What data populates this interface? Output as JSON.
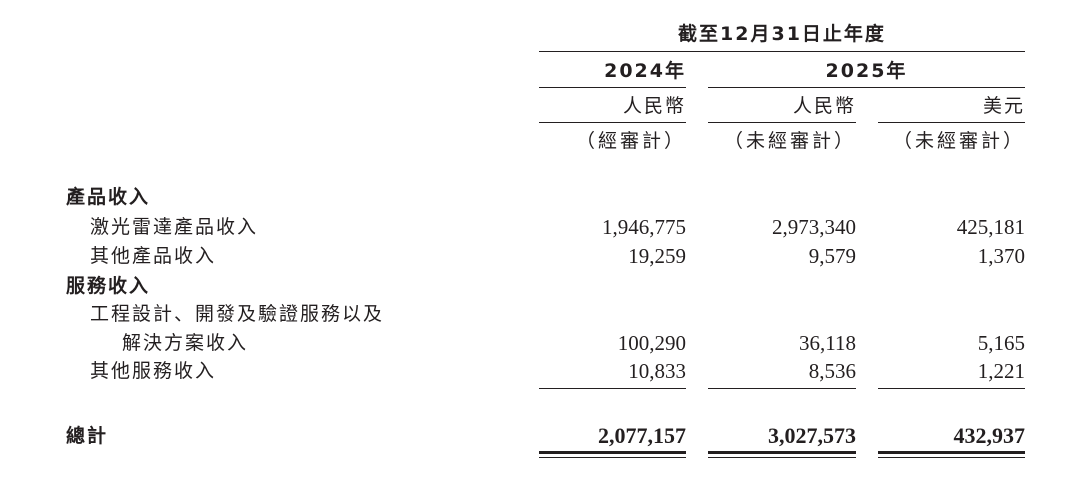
{
  "header": {
    "period": "截至12月31日止年度",
    "years": [
      "2024年",
      "2025年"
    ],
    "currencies": [
      "人民幣",
      "人民幣",
      "美元"
    ],
    "audit": [
      "（經審計）",
      "（未經審計）",
      "（未經審計）"
    ]
  },
  "rows": [
    {
      "label": "產品收入",
      "bold": true,
      "indent": 0,
      "values": [
        "",
        "",
        ""
      ]
    },
    {
      "label": "激光雷達產品收入",
      "bold": false,
      "indent": 1,
      "values": [
        "1,946,775",
        "2,973,340",
        "425,181"
      ]
    },
    {
      "label": "其他產品收入",
      "bold": false,
      "indent": 1,
      "values": [
        "19,259",
        "9,579",
        "1,370"
      ]
    },
    {
      "label": "服務收入",
      "bold": true,
      "indent": 0,
      "values": [
        "",
        "",
        ""
      ]
    },
    {
      "label": "工程設計、開發及驗證服務以及",
      "bold": false,
      "indent": 1,
      "values": [
        "",
        "",
        ""
      ]
    },
    {
      "label": "解決方案收入",
      "bold": false,
      "indent": 2,
      "values": [
        "100,290",
        "36,118",
        "5,165"
      ]
    },
    {
      "label": "其他服務收入",
      "bold": false,
      "indent": 1,
      "values": [
        "10,833",
        "8,536",
        "1,221"
      ]
    }
  ],
  "total": {
    "label": "總計",
    "values": [
      "2,077,157",
      "3,027,573",
      "432,937"
    ]
  }
}
